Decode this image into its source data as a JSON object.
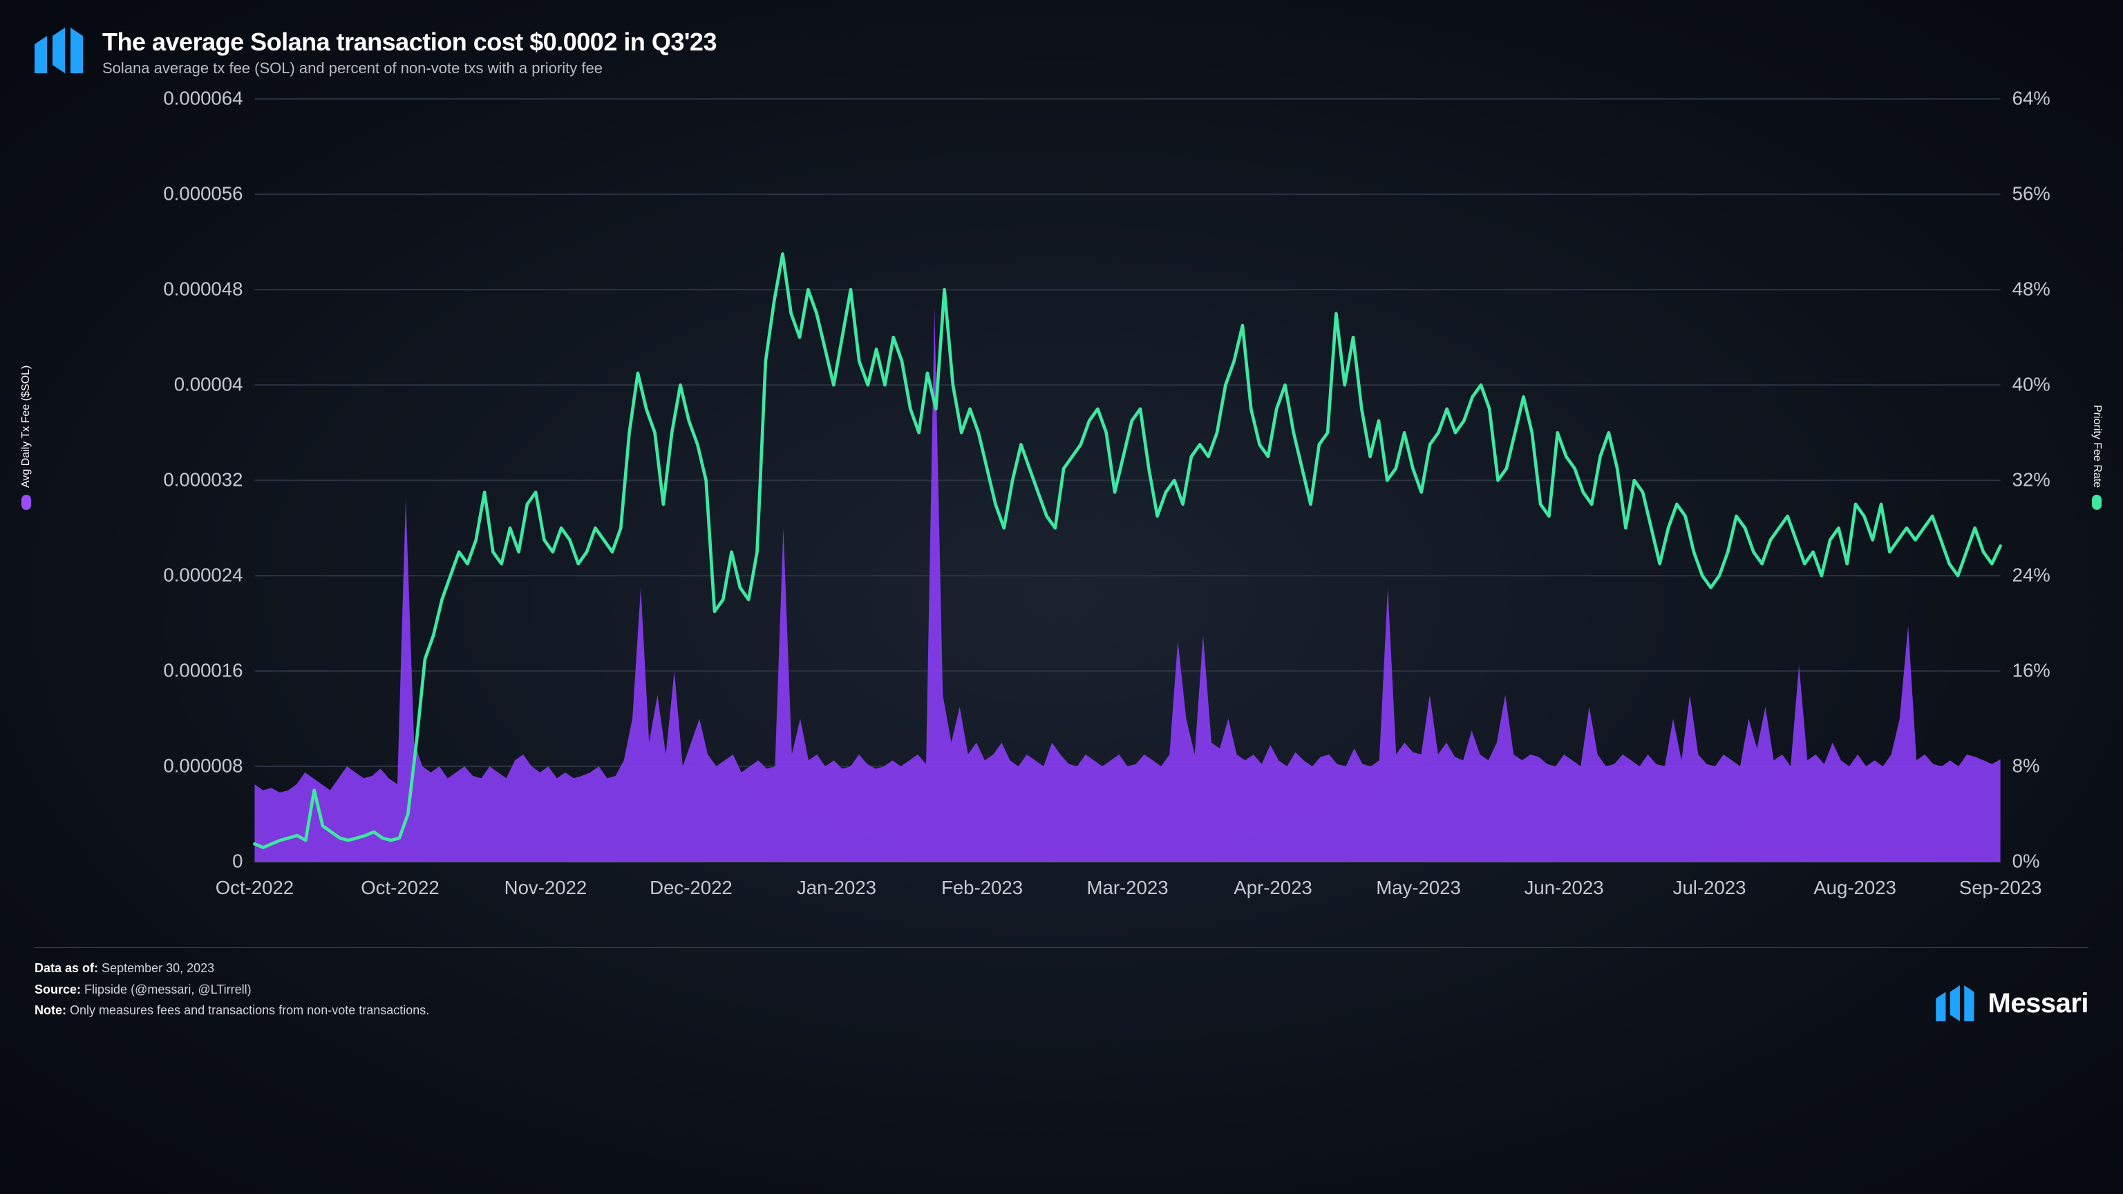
{
  "header": {
    "title": "The average Solana transaction cost $0.0002 in Q3'23",
    "subtitle": "Solana average tx fee (SOL) and percent of non-vote txs with a priority fee"
  },
  "chart": {
    "type": "dual-axis-area-line",
    "background_color": "transparent",
    "grid_color": "#2a3240",
    "baseline_color": "#4a5260",
    "left_axis": {
      "label": "Avg Daily Tx Fee ($SOL)",
      "swatch_color": "#9b4dff",
      "min": 0,
      "max": 6.4e-05,
      "tick_step": 8e-06,
      "tick_labels": [
        "0",
        "0.000008",
        "0.000016",
        "0.000024",
        "0.000032",
        "0.00004",
        "0.000048",
        "0.000056",
        "0.000064"
      ],
      "tick_fontsize": 13,
      "tick_color": "#c4c8d0"
    },
    "right_axis": {
      "label": "Priority Fee Rate",
      "swatch_color": "#3de8a0",
      "min": 0,
      "max": 64,
      "tick_step": 8,
      "tick_labels": [
        "0%",
        "8%",
        "16%",
        "24%",
        "32%",
        "40%",
        "48%",
        "56%",
        "64%"
      ],
      "tick_fontsize": 13,
      "tick_color": "#c4c8d0"
    },
    "x_axis": {
      "labels": [
        "Oct-2022",
        "Oct-2022",
        "Nov-2022",
        "Dec-2022",
        "Jan-2023",
        "Feb-2023",
        "Mar-2023",
        "Apr-2023",
        "May-2023",
        "Jun-2023",
        "Jul-2023",
        "Aug-2023",
        "Sep-2023"
      ],
      "tick_fontsize": 13,
      "tick_color": "#c4c8d0"
    },
    "series_area": {
      "name": "Avg Daily Tx Fee",
      "fill_color": "#8a3df5",
      "fill_opacity": 0.9,
      "stroke": "none",
      "values_e6": [
        6.5,
        6,
        6.2,
        5.8,
        6,
        6.5,
        7.5,
        7,
        6.5,
        6,
        7,
        8,
        7.5,
        7,
        7.2,
        7.8,
        7,
        6.5,
        30.5,
        10,
        8,
        7.5,
        8,
        7,
        7.5,
        8,
        7.2,
        7,
        8,
        7.5,
        7,
        8.5,
        9,
        8,
        7.5,
        8,
        7,
        7.5,
        7,
        7.2,
        7.5,
        8,
        7,
        7.2,
        8.5,
        12,
        23,
        10,
        14,
        9,
        16,
        8,
        10,
        12,
        9,
        8,
        8.5,
        9,
        7.5,
        8,
        8.5,
        7.8,
        8,
        28,
        9,
        12,
        8.5,
        9,
        8,
        8.5,
        7.8,
        8,
        9,
        8.2,
        7.8,
        8,
        8.5,
        8,
        8.5,
        9,
        8.2,
        46.5,
        14,
        10,
        13,
        9,
        10,
        8.5,
        9,
        10,
        8.5,
        8,
        9,
        8.5,
        8,
        10,
        9,
        8.2,
        8,
        9,
        8.5,
        8,
        8.5,
        9,
        8,
        8.2,
        9,
        8.5,
        8,
        9,
        18.5,
        12,
        9,
        19,
        10,
        9.5,
        12,
        9,
        8.5,
        9,
        8.2,
        9.8,
        8.5,
        8,
        9.2,
        8.5,
        8,
        8.8,
        9,
        8.2,
        8,
        9.5,
        8.2,
        8,
        8.5,
        23,
        9,
        10,
        9.2,
        9,
        14,
        9,
        10,
        8.8,
        8.5,
        11,
        9,
        8.5,
        10,
        14,
        9,
        8.5,
        9,
        8.8,
        8.2,
        8,
        9,
        8.5,
        8,
        13,
        9,
        8,
        8.2,
        9,
        8.5,
        8,
        9,
        8.2,
        8,
        12,
        8.5,
        14,
        9,
        8.2,
        8,
        9,
        8.5,
        8,
        12,
        9.5,
        13,
        8.5,
        9,
        8,
        16.5,
        8.5,
        9,
        8.2,
        10,
        8.5,
        8,
        9,
        8,
        8.5,
        8,
        9,
        12,
        19.8,
        8.5,
        9,
        8.2,
        8,
        8.5,
        8,
        9,
        8.8,
        8.5,
        8.2,
        8.6
      ]
    },
    "series_line": {
      "name": "Priority Fee Rate",
      "stroke_color": "#3de8a0",
      "stroke_width": 2.2,
      "fill": "none",
      "values_pct": [
        1.5,
        1.2,
        1.5,
        1.8,
        2,
        2.2,
        1.8,
        6,
        3,
        2.5,
        2,
        1.8,
        2,
        2.2,
        2.5,
        2,
        1.8,
        2,
        4,
        10,
        17,
        19,
        22,
        24,
        26,
        25,
        27,
        31,
        26,
        25,
        28,
        26,
        30,
        31,
        27,
        26,
        28,
        27,
        25,
        26,
        28,
        27,
        26,
        28,
        36,
        41,
        38,
        36,
        30,
        36,
        40,
        37,
        35,
        32,
        21,
        22,
        26,
        23,
        22,
        26,
        42,
        47,
        51,
        46,
        44,
        48,
        46,
        43,
        40,
        44,
        48,
        42,
        40,
        43,
        40,
        44,
        42,
        38,
        36,
        41,
        38,
        48,
        40,
        36,
        38,
        36,
        33,
        30,
        28,
        32,
        35,
        33,
        31,
        29,
        28,
        33,
        34,
        35,
        37,
        38,
        36,
        31,
        34,
        37,
        38,
        33,
        29,
        31,
        32,
        30,
        34,
        35,
        34,
        36,
        40,
        42,
        45,
        38,
        35,
        34,
        38,
        40,
        36,
        33,
        30,
        35,
        36,
        46,
        40,
        44,
        38,
        34,
        37,
        32,
        33,
        36,
        33,
        31,
        35,
        36,
        38,
        36,
        37,
        39,
        40,
        38,
        32,
        33,
        36,
        39,
        36,
        30,
        29,
        36,
        34,
        33,
        31,
        30,
        34,
        36,
        33,
        28,
        32,
        31,
        28,
        25,
        28,
        30,
        29,
        26,
        24,
        23,
        24,
        26,
        29,
        28,
        26,
        25,
        27,
        28,
        29,
        27,
        25,
        26,
        24,
        27,
        28,
        25,
        30,
        29,
        27,
        30,
        26,
        27,
        28,
        27,
        28,
        29,
        27,
        25,
        24,
        26,
        28,
        26,
        25,
        26.5
      ]
    }
  },
  "footer": {
    "data_as_of_label": "Data as of:",
    "data_as_of_value": "September 30, 2023",
    "source_label": "Source:",
    "source_value": "Flipside (@messari, @LTirrell)",
    "note_label": "Note:",
    "note_value": "Only measures fees and transactions from non-vote transactions.",
    "brand_name": "Messari",
    "brand_logo_color": "#1fa3ff"
  },
  "logo": {
    "color": "#1fa3ff"
  }
}
